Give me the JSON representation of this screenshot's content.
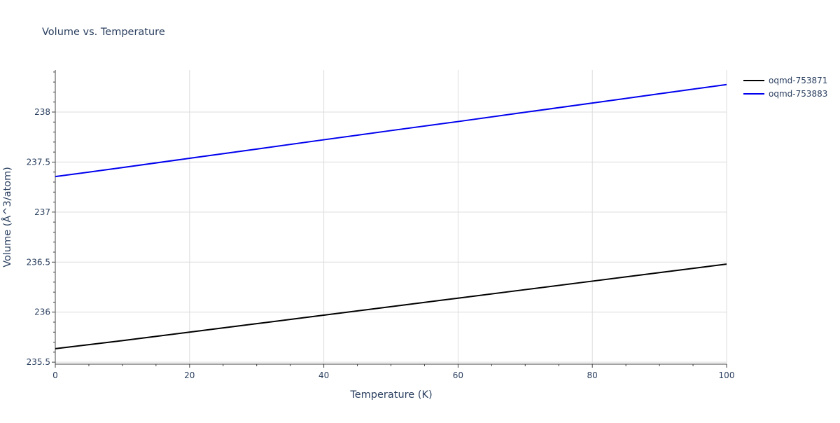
{
  "chart_data": {
    "type": "line",
    "title": "Volume vs. Temperature",
    "xlabel": "Temperature (K)",
    "ylabel": "Volume (Å^3/atom)",
    "xlim": [
      0,
      100
    ],
    "ylim": [
      235.48,
      238.42
    ],
    "x_ticks": [
      0,
      20,
      40,
      60,
      80,
      100
    ],
    "x_tick_labels": [
      "0",
      "20",
      "40",
      "60",
      "80",
      "100"
    ],
    "y_ticks": [
      235.5,
      236,
      236.5,
      237,
      237.5,
      238
    ],
    "y_tick_labels": [
      "235.5",
      "236",
      "236.5",
      "237",
      "237.5",
      "238"
    ],
    "grid": true,
    "legend_position": "top-right",
    "series": [
      {
        "name": "oqmd-753871",
        "color": "#000000",
        "x": [
          0,
          10,
          20,
          30,
          40,
          50,
          60,
          70,
          80,
          90,
          100
        ],
        "values": [
          235.635,
          235.715,
          235.8,
          235.885,
          235.97,
          236.055,
          236.14,
          236.225,
          236.31,
          236.395,
          236.48
        ]
      },
      {
        "name": "oqmd-753883",
        "color": "#0000ee",
        "x": [
          0,
          10,
          20,
          30,
          40,
          50,
          60,
          70,
          80,
          90,
          100
        ],
        "values": [
          237.355,
          237.445,
          237.538,
          237.63,
          237.723,
          237.815,
          237.905,
          237.998,
          238.09,
          238.183,
          238.275
        ]
      }
    ]
  }
}
